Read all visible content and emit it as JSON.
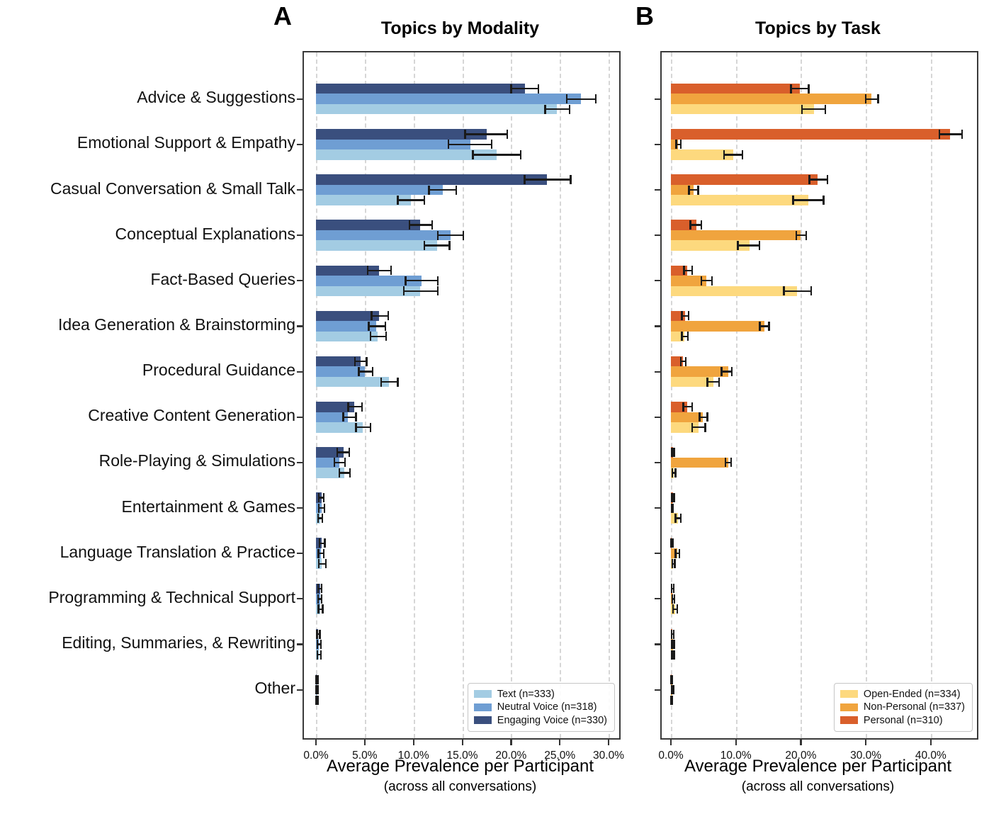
{
  "chart_data": [
    {
      "type": "bar",
      "orientation": "horizontal",
      "panel_label": "A",
      "title": "Topics by Modality",
      "xlabel": "Average Prevalence per Participant",
      "xlabel_sub": "(across all conversations)",
      "xlim": [
        0,
        31
      ],
      "xticks": [
        0,
        5,
        10,
        15,
        20,
        25,
        30
      ],
      "xtick_labels": [
        "0.0%",
        "5.0%",
        "10.0%",
        "15.0%",
        "20.0%",
        "25.0%",
        "30.0%"
      ],
      "grid": "vertical-dashed",
      "legend_position": "lower-right",
      "error_bars": "95% CI, black with caps",
      "categories": [
        "Advice & Suggestions",
        "Emotional Support & Empathy",
        "Casual Conversation & Small Talk",
        "Conceptual Explanations",
        "Fact-Based Queries",
        "Idea Generation & Brainstorming",
        "Procedural Guidance",
        "Creative Content Generation",
        "Role-Playing & Simulations",
        "Entertainment & Games",
        "Language Translation & Practice",
        "Programming & Technical Support",
        "Editing, Summaries, & Rewriting",
        "Other"
      ],
      "series": [
        {
          "name": "Text (n=333)",
          "color": "#A3CCE3",
          "values": [
            24.7,
            18.5,
            9.7,
            12.4,
            10.7,
            6.3,
            7.5,
            4.8,
            2.9,
            0.4,
            0.6,
            0.45,
            0.3,
            0.1
          ],
          "err_lo": [
            23.5,
            16.1,
            8.4,
            11.1,
            9.0,
            5.6,
            6.7,
            4.1,
            2.4,
            0.2,
            0.3,
            0.25,
            0.15,
            0.03
          ],
          "err_hi": [
            26.0,
            21.0,
            11.1,
            13.7,
            12.5,
            7.2,
            8.4,
            5.6,
            3.5,
            0.65,
            1.0,
            0.7,
            0.5,
            0.2
          ]
        },
        {
          "name": "Neutral Voice (n=318)",
          "color": "#6F9ED3",
          "values": [
            27.2,
            15.8,
            13.0,
            13.8,
            10.8,
            6.2,
            5.0,
            3.3,
            2.4,
            0.55,
            0.5,
            0.4,
            0.3,
            0.1
          ],
          "err_lo": [
            25.7,
            13.6,
            11.6,
            12.5,
            9.2,
            5.4,
            4.4,
            2.8,
            1.9,
            0.3,
            0.25,
            0.2,
            0.15,
            0.03
          ],
          "err_hi": [
            28.7,
            18.0,
            14.4,
            15.1,
            12.5,
            7.1,
            5.8,
            4.1,
            3.0,
            0.85,
            0.8,
            0.6,
            0.5,
            0.2
          ]
        },
        {
          "name": "Engaging Voice (n=330)",
          "color": "#3A4F7E",
          "values": [
            21.4,
            17.5,
            23.7,
            10.7,
            6.5,
            6.5,
            4.6,
            3.9,
            2.8,
            0.55,
            0.6,
            0.4,
            0.25,
            0.1
          ],
          "err_lo": [
            20.0,
            15.3,
            21.4,
            9.6,
            5.3,
            5.7,
            4.0,
            3.3,
            2.2,
            0.3,
            0.35,
            0.2,
            0.1,
            0.03
          ],
          "err_hi": [
            22.8,
            19.6,
            26.1,
            11.9,
            7.7,
            7.4,
            5.2,
            4.7,
            3.4,
            0.8,
            0.9,
            0.6,
            0.4,
            0.2
          ]
        }
      ]
    },
    {
      "type": "bar",
      "orientation": "horizontal",
      "panel_label": "B",
      "title": "Topics by Task",
      "xlabel": "Average Prevalence per Participant",
      "xlabel_sub": "(across all conversations)",
      "xlim": [
        0,
        47.2
      ],
      "xticks": [
        0,
        10,
        20,
        30,
        40
      ],
      "xtick_labels": [
        "0.0%",
        "10.0%",
        "20.0%",
        "30.0%",
        "40.0%"
      ],
      "grid": "vertical-dashed",
      "legend_position": "lower-right",
      "error_bars": "95% CI, black with caps",
      "categories": [
        "Advice & Suggestions",
        "Emotional Support & Empathy",
        "Casual Conversation & Small Talk",
        "Conceptual Explanations",
        "Fact-Based Queries",
        "Idea Generation & Brainstorming",
        "Procedural Guidance",
        "Creative Content Generation",
        "Role-Playing & Simulations",
        "Entertainment & Games",
        "Language Translation & Practice",
        "Programming & Technical Support",
        "Editing, Summaries, & Rewriting",
        "Other"
      ],
      "series": [
        {
          "name": "Open-Ended (n=334)",
          "color": "#FDD97E",
          "values": [
            22.0,
            9.6,
            21.2,
            12.1,
            19.4,
            2.1,
            6.5,
            4.3,
            0.4,
            1.1,
            0.35,
            0.6,
            0.3,
            0.15
          ],
          "err_lo": [
            20.2,
            8.2,
            18.8,
            10.3,
            17.4,
            1.7,
            5.6,
            3.3,
            0.2,
            0.7,
            0.2,
            0.3,
            0.15,
            0.05
          ],
          "err_hi": [
            23.8,
            11.0,
            23.5,
            13.6,
            21.6,
            2.6,
            7.4,
            5.3,
            0.7,
            1.5,
            0.6,
            1.0,
            0.5,
            0.25
          ]
        },
        {
          "name": "Non-Personal (n=337)",
          "color": "#F0A43E",
          "values": [
            30.9,
            1.1,
            3.5,
            20.0,
            5.5,
            14.4,
            8.8,
            4.9,
            8.8,
            0.2,
            1.0,
            0.35,
            0.3,
            0.25
          ],
          "err_lo": [
            30.0,
            0.8,
            2.8,
            19.3,
            4.7,
            13.7,
            7.8,
            4.4,
            8.4,
            0.1,
            0.7,
            0.2,
            0.15,
            0.1
          ],
          "err_hi": [
            31.9,
            1.5,
            4.2,
            20.8,
            6.3,
            15.1,
            9.4,
            5.6,
            9.3,
            0.35,
            1.3,
            0.55,
            0.5,
            0.4
          ]
        },
        {
          "name": "Personal (n=310)",
          "color": "#D95F2B",
          "values": [
            19.9,
            43.0,
            22.6,
            3.9,
            2.5,
            2.2,
            1.9,
            2.5,
            0.3,
            0.3,
            0.15,
            0.25,
            0.25,
            0.1
          ],
          "err_lo": [
            18.5,
            41.3,
            21.3,
            3.0,
            2.0,
            1.7,
            1.5,
            1.9,
            0.15,
            0.15,
            0.05,
            0.1,
            0.1,
            0.03
          ],
          "err_hi": [
            21.2,
            44.8,
            24.1,
            4.7,
            3.3,
            2.7,
            2.3,
            3.3,
            0.5,
            0.5,
            0.3,
            0.45,
            0.45,
            0.2
          ]
        }
      ]
    }
  ]
}
